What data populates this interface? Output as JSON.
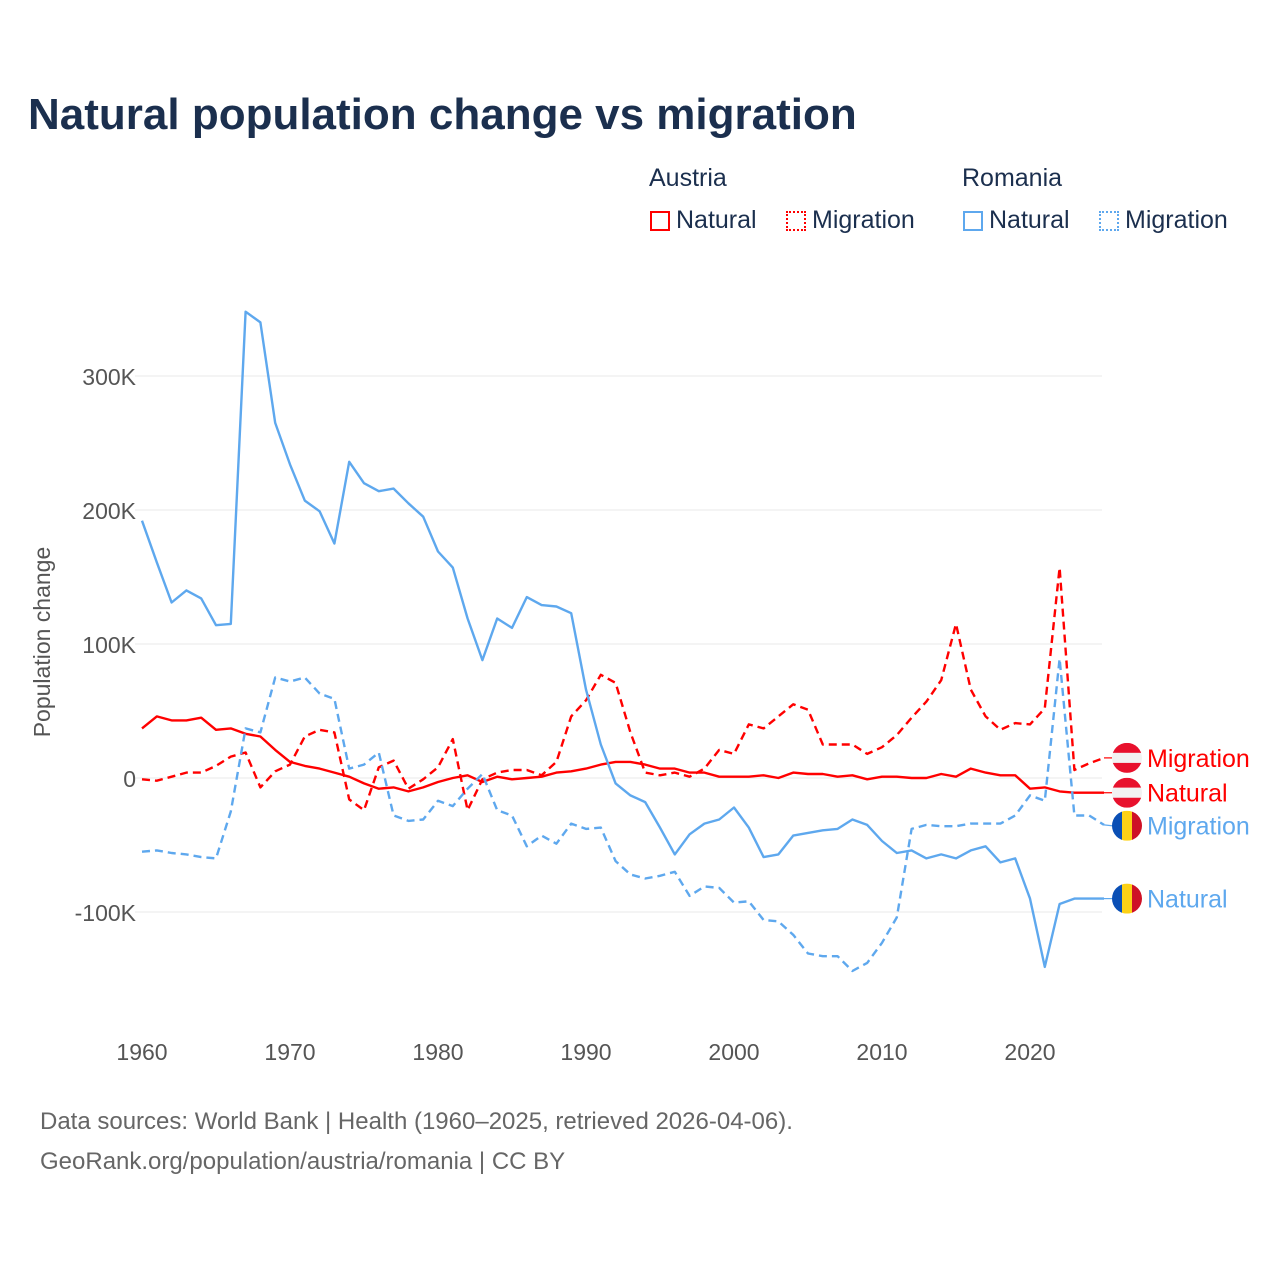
{
  "title": "Natural population change vs migration",
  "legend": {
    "groups": [
      {
        "name": "Austria",
        "items": [
          "Natural",
          "Migration"
        ]
      },
      {
        "name": "Romania",
        "items": [
          "Natural",
          "Migration"
        ]
      }
    ]
  },
  "colors": {
    "austria": "#ff0000",
    "romania": "#5ea8ee",
    "title": "#1b2f4e"
  },
  "footer": {
    "line1": "Data sources: World Bank | Health (1960–2025, retrieved 2026-04-06).",
    "line2": "GeoRank.org/population/austria/romania | CC BY"
  },
  "chart_data": {
    "type": "line",
    "title": "Natural population change vs migration",
    "xlabel": "",
    "ylabel": "Population change",
    "xlim": [
      1960,
      2025
    ],
    "ylim": [
      -170000,
      370000
    ],
    "x_ticks": [
      1960,
      1970,
      1980,
      1990,
      2000,
      2010,
      2020
    ],
    "y_ticks": [
      {
        "v": -100000,
        "label": "-100K"
      },
      {
        "v": 0,
        "label": "0"
      },
      {
        "v": 100000,
        "label": "100K"
      },
      {
        "v": 200000,
        "label": "200K"
      },
      {
        "v": 300000,
        "label": "300K"
      }
    ],
    "grid": true,
    "x_start": 1960,
    "series": [
      {
        "name": "Austria Natural",
        "label": "Natural",
        "country": "austria",
        "dash": false,
        "values_k": [
          37,
          46,
          43,
          43,
          45,
          36,
          37,
          33,
          31,
          21,
          12,
          9,
          7,
          4,
          1,
          -4,
          -8,
          -7,
          -10,
          -7,
          -3,
          0,
          2,
          -3,
          1,
          -1,
          0,
          1,
          4,
          5,
          7,
          10,
          12,
          12,
          10,
          7,
          7,
          4,
          4,
          1,
          1,
          1,
          2,
          0,
          4,
          3,
          3,
          1,
          2,
          -1,
          1,
          1,
          0,
          0,
          3,
          1,
          7,
          4,
          2,
          2,
          -8,
          -7,
          -10,
          -11,
          -11,
          -11
        ]
      },
      {
        "name": "Austria Migration",
        "label": "Migration",
        "country": "austria",
        "dash": true,
        "values_k": [
          -1,
          -2,
          1,
          4,
          4,
          9,
          16,
          19,
          -7,
          5,
          10,
          31,
          36,
          34,
          -16,
          -24,
          8,
          13,
          -8,
          -1,
          8,
          29,
          -24,
          -1,
          4,
          6,
          6,
          2,
          12,
          46,
          58,
          77,
          71,
          34,
          4,
          2,
          4,
          1,
          7,
          21,
          18,
          40,
          37,
          46,
          55,
          51,
          25,
          25,
          25,
          18,
          23,
          32,
          45,
          57,
          73,
          115,
          66,
          46,
          36,
          41,
          40,
          52,
          157,
          6,
          11,
          15
        ]
      },
      {
        "name": "Romania Natural",
        "label": "Natural",
        "country": "romania",
        "dash": false,
        "values_k": [
          192,
          161,
          131,
          140,
          134,
          114,
          115,
          348,
          340,
          265,
          234,
          207,
          199,
          175,
          236,
          220,
          214,
          216,
          205,
          195,
          169,
          157,
          119,
          88,
          119,
          112,
          135,
          129,
          128,
          123,
          66,
          25,
          -4,
          -13,
          -18,
          -37,
          -57,
          -42,
          -34,
          -31,
          -22,
          -37,
          -59,
          -57,
          -43,
          -41,
          -39,
          -38,
          -31,
          -35,
          -47,
          -56,
          -54,
          -60,
          -57,
          -60,
          -54,
          -51,
          -63,
          -60,
          -90,
          -141,
          -94,
          -90,
          -90,
          -90
        ]
      },
      {
        "name": "Romania Migration",
        "label": "Migration",
        "country": "romania",
        "dash": true,
        "values_k": [
          -55,
          -54,
          -56,
          -57,
          -59,
          -60,
          -25,
          37,
          34,
          75,
          72,
          75,
          63,
          59,
          7,
          10,
          19,
          -28,
          -32,
          -31,
          -17,
          -21,
          -8,
          3,
          -24,
          -28,
          -51,
          -43,
          -49,
          -34,
          -38,
          -37,
          -62,
          -72,
          -75,
          -73,
          -70,
          -88,
          -81,
          -82,
          -93,
          -92,
          -106,
          -107,
          -117,
          -131,
          -133,
          -133,
          -144,
          -138,
          -123,
          -104,
          -38,
          -35,
          -36,
          -36,
          -34,
          -34,
          -34,
          -28,
          -13,
          -17,
          89,
          -28,
          -28,
          -35
        ]
      }
    ],
    "end_labels": [
      {
        "series": "Austria Migration",
        "text": "Migration",
        "flag": "austria"
      },
      {
        "series": "Austria Natural",
        "text": "Natural",
        "flag": "austria"
      },
      {
        "series": "Romania Migration",
        "text": "Migration",
        "flag": "romania"
      },
      {
        "series": "Romania Natural",
        "text": "Natural",
        "flag": "romania"
      }
    ]
  }
}
